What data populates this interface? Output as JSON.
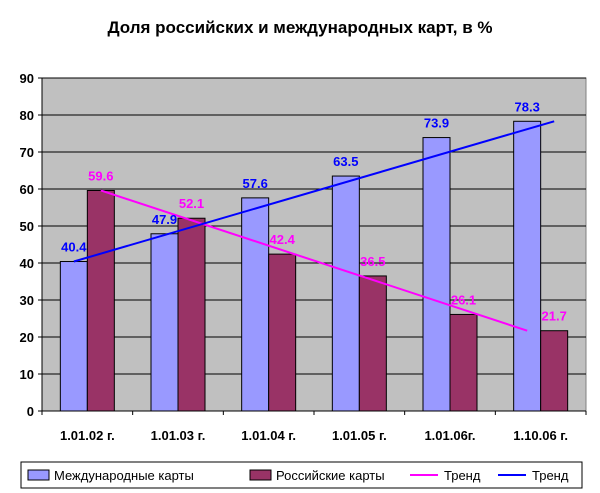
{
  "chart_data": {
    "type": "bar",
    "title": "Доля российских и международных карт, в %",
    "categories": [
      "1.01.02 г.",
      "1.01.03 г.",
      "1.01.04 г.",
      "1.01.05 г.",
      "1.01.06г.",
      "1.10.06 г."
    ],
    "ylim": [
      0,
      90
    ],
    "yticks": [
      0,
      10,
      20,
      30,
      40,
      50,
      60,
      70,
      80,
      90
    ],
    "grid": true,
    "series": [
      {
        "name": "Международные карты",
        "type": "bar",
        "color": "#9999FF",
        "labelColor": "#0000FF",
        "values": [
          40.4,
          47.9,
          57.6,
          63.5,
          73.9,
          78.3
        ],
        "labels": [
          "40.4",
          "47.9",
          "57.6",
          "63.5",
          "73.9",
          "78.3"
        ]
      },
      {
        "name": "Российские карты",
        "type": "bar",
        "color": "#993366",
        "labelColor": "#FF00FF",
        "values": [
          59.6,
          52.1,
          42.4,
          36.5,
          26.1,
          21.7
        ],
        "labels": [
          "59.6",
          "52.1",
          "42.4",
          "36.5",
          "26.1",
          "21.7"
        ]
      },
      {
        "name": "Тренд",
        "type": "line",
        "color": "#FF00FF",
        "trend_of": "Российские карты"
      },
      {
        "name": "Тренд",
        "type": "line",
        "color": "#0000FF",
        "trend_of": "Международные карты"
      }
    ],
    "legend": "bottom",
    "plot_background": "#C0C0C0"
  }
}
